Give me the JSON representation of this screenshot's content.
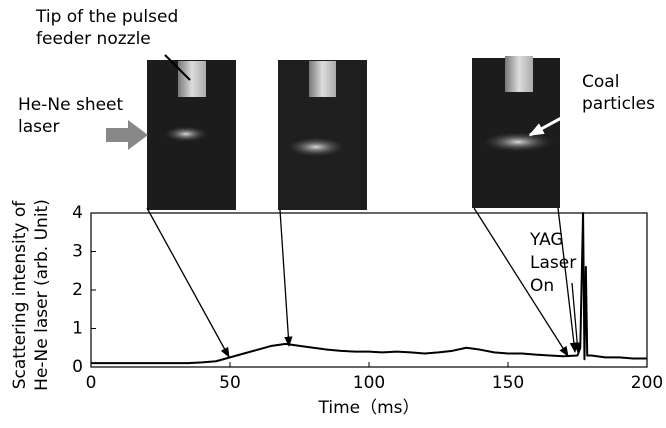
{
  "chart_data": {
    "type": "line",
    "x_label": "Time（ms）",
    "y_label": [
      "Scattering intensity of",
      "He-Ne laser (arb. Unit)"
    ],
    "x": [
      0,
      5,
      10,
      15,
      20,
      25,
      30,
      35,
      40,
      45,
      50,
      55,
      60,
      65,
      70,
      75,
      80,
      85,
      90,
      95,
      100,
      105,
      110,
      115,
      120,
      125,
      130,
      135,
      140,
      145,
      150,
      155,
      160,
      165,
      170,
      175,
      176,
      177,
      177.5,
      178,
      178.5,
      180,
      185,
      190,
      195,
      200
    ],
    "series": [
      {
        "color": "#000000",
        "values": [
          0.1,
          0.1,
          0.1,
          0.1,
          0.1,
          0.1,
          0.1,
          0.1,
          0.12,
          0.15,
          0.25,
          0.35,
          0.45,
          0.55,
          0.6,
          0.55,
          0.5,
          0.45,
          0.42,
          0.4,
          0.4,
          0.38,
          0.4,
          0.38,
          0.35,
          0.38,
          0.42,
          0.5,
          0.45,
          0.38,
          0.35,
          0.35,
          0.32,
          0.3,
          0.28,
          0.3,
          0.5,
          4,
          0.2,
          2.6,
          0.3,
          0.3,
          0.25,
          0.25,
          0.22,
          0.22
        ]
      }
    ],
    "xlim": [
      0,
      200
    ],
    "xticks": [
      0,
      50,
      100,
      150,
      200
    ],
    "ylim": [
      0,
      4
    ],
    "yticks": [
      0,
      1,
      2,
      3,
      4
    ],
    "annotations": [
      {
        "lines": [
          "Tip of the pulsed",
          "feeder nozzle"
        ]
      },
      {
        "lines": [
          "He-Ne sheet",
          "laser"
        ]
      },
      {
        "lines": [
          "Coal",
          "particles"
        ]
      },
      {
        "lines": [
          "YAG",
          "Laser",
          "On"
        ]
      }
    ]
  }
}
